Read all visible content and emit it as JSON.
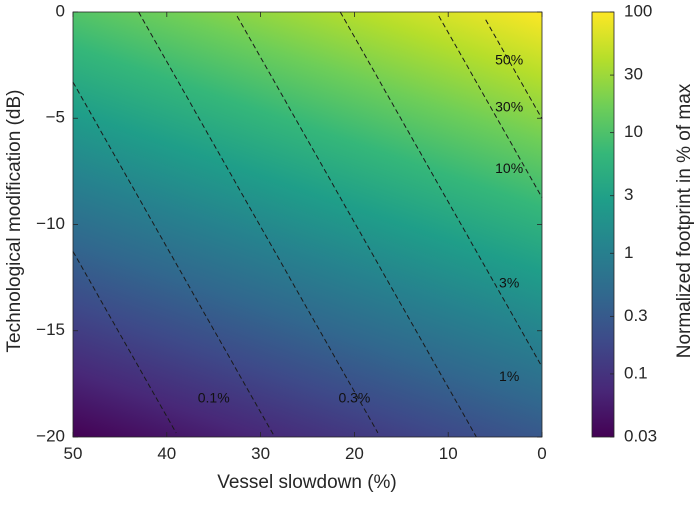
{
  "chart_data": {
    "type": "heatmap",
    "xlabel": "Vessel slowdown (%)",
    "ylabel": "Technological modification (dB)",
    "colorbar_label": "Normalized footprint in % of max",
    "x_ticks": [
      50,
      40,
      30,
      20,
      10,
      0
    ],
    "y_ticks": [
      0,
      -5,
      -10,
      -15,
      -20
    ],
    "xlim": [
      50,
      0
    ],
    "ylim": [
      -20,
      0
    ],
    "x_reversed": true,
    "colorbar_ticks": [
      "0.03",
      "0.1",
      "0.3",
      "1",
      "3",
      "10",
      "30",
      "100"
    ],
    "colorbar_range": [
      0.03,
      100
    ],
    "colorbar_scale": "log",
    "colormap": "viridis",
    "contours": [
      {
        "label": "0.1%",
        "level": 0.1,
        "label_x": 35,
        "label_y": -18.2
      },
      {
        "label": "0.3%",
        "level": 0.3,
        "label_x": 20,
        "label_y": -18.2
      },
      {
        "label": "1%",
        "level": 1,
        "label_x": 3.5,
        "label_y": -17.2
      },
      {
        "label": "3%",
        "level": 3,
        "label_x": 3.5,
        "label_y": -12.8
      },
      {
        "label": "10%",
        "level": 10,
        "label_x": 3.5,
        "label_y": -7.4
      },
      {
        "label": "30%",
        "level": 30,
        "label_x": 3.5,
        "label_y": -4.5
      },
      {
        "label": "50%",
        "level": 50,
        "label_x": 3.5,
        "label_y": -2.3
      }
    ]
  }
}
